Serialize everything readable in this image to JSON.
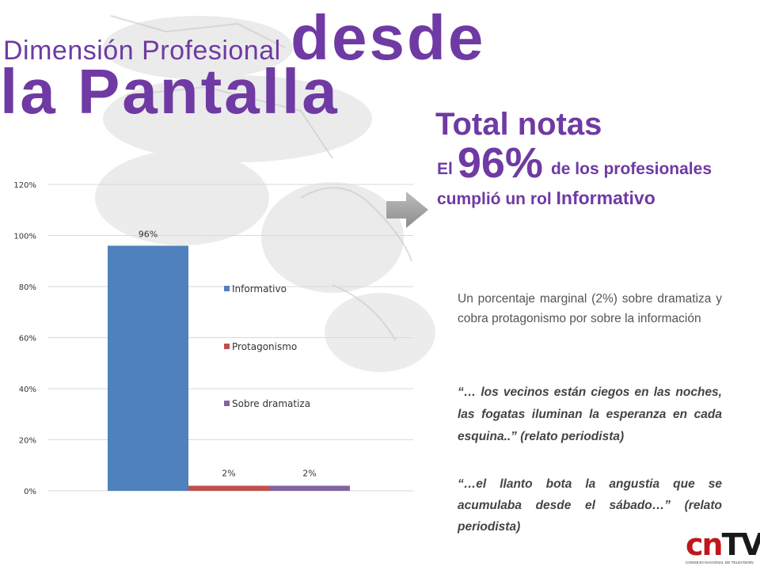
{
  "title": {
    "line1_small": "Dimensión Profesional",
    "line1_big": "desde",
    "line2": "la Pantalla"
  },
  "heading": "Total notas",
  "stat": {
    "prefix": "El",
    "percent": "96%",
    "part1": "de los profesionales cumplió un rol",
    "emph": "Informativo"
  },
  "body": "Un porcentaje marginal (2%) sobre dramatiza y cobra protagonismo por sobre la información",
  "quote1": "“… los vecinos están ciegos en las noches, las fogatas iluminan la esperanza en cada esquina..” (relato periodista)",
  "quote2": "“…el llanto bota la angustia que se acumulaba desde el sábado…” (relato periodista)",
  "logo": {
    "letters_red": "cn",
    "letters_dark": "TV",
    "subtitle": "CONSEJO NACIONAL DE TELEVISION"
  },
  "colors": {
    "purple_text": "#6f3aa3",
    "informativo": "#4f81bd",
    "protagonismo": "#c0504d",
    "sobre_dramatiza": "#8064a2"
  },
  "chart_data": {
    "type": "bar",
    "categories": [
      "Informativo",
      "Protagonismo",
      "Sobre dramatiza"
    ],
    "series": [
      {
        "name": "Informativo",
        "values": [
          96,
          null,
          null
        ],
        "color": "#4f81bd",
        "label": "96%"
      },
      {
        "name": "Protagonismo",
        "values": [
          null,
          2,
          null
        ],
        "color": "#c0504d",
        "label": "2%"
      },
      {
        "name": "Sobre dramatiza",
        "values": [
          null,
          null,
          2
        ],
        "color": "#8064a2",
        "label": "2%"
      }
    ],
    "yticks": [
      "0%",
      "20%",
      "40%",
      "60%",
      "80%",
      "100%",
      "120%"
    ],
    "ylim": [
      0,
      120
    ],
    "grid": true,
    "legend": "right (inside plot)"
  }
}
